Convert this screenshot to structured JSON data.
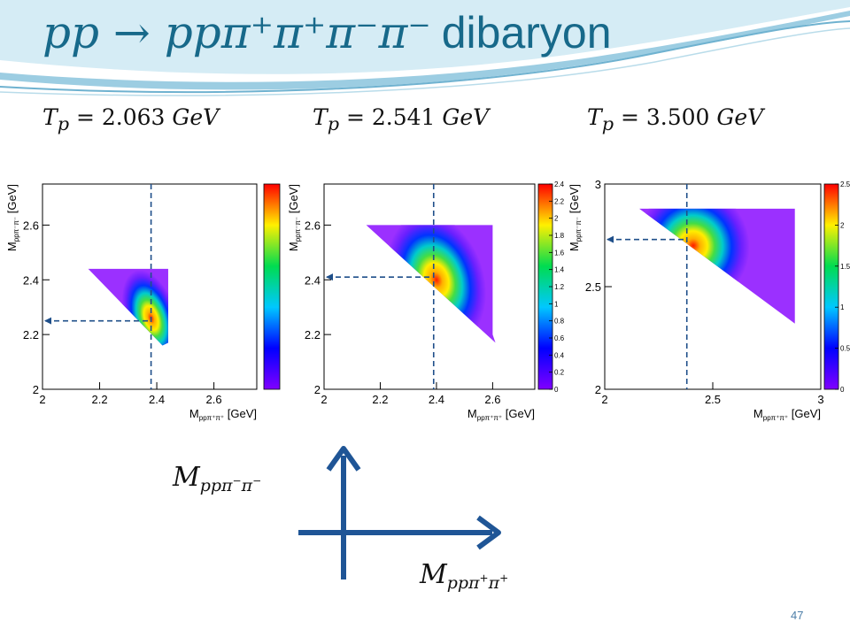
{
  "slide": {
    "title_math": "pp → ppπ⁺π⁺π⁻π⁻",
    "title_word": "dibaryon",
    "page_number": "47",
    "arrow_y_label": {
      "base": "M",
      "sub": "ppπ",
      "sup1": "−",
      "mid": "π",
      "sup2": "−"
    },
    "arrow_x_label": {
      "base": "M",
      "sub": "ppπ",
      "sup1": "+",
      "mid": "π",
      "sup2": "+"
    },
    "accent_color": "#17698a",
    "arrow_color": "#1f5596"
  },
  "panels": [
    {
      "energy_label": {
        "var": "T",
        "sub": "p",
        "eq": " = 2.063 ",
        "unit": "GeV"
      }
    },
    {
      "energy_label": {
        "var": "T",
        "sub": "p",
        "eq": " = 2.541 ",
        "unit": "GeV"
      }
    },
    {
      "energy_label": {
        "var": "T",
        "sub": "p",
        "eq": " = 3.500 ",
        "unit": "GeV"
      }
    }
  ],
  "chart_data": [
    {
      "type": "heatmap",
      "title": "",
      "xlabel": "M_{ppπ⁺π⁺} [GeV]",
      "ylabel": "M_{ppπ⁻π⁻} [GeV]",
      "xlim": [
        2.0,
        2.75
      ],
      "ylim": [
        2.0,
        2.75
      ],
      "xticks": [
        "2",
        "2.2",
        "2.4",
        "2.6"
      ],
      "yticks": [
        "2",
        "2.2",
        "2.4",
        "2.6"
      ],
      "region": [
        [
          2.16,
          2.44
        ],
        [
          2.44,
          2.44
        ],
        [
          2.44,
          2.17
        ],
        [
          2.42,
          2.16
        ]
      ],
      "peak": [
        2.38,
        2.26
      ],
      "spread": [
        0.035,
        0.07
      ],
      "dashed_marker": [
        2.38,
        2.25
      ],
      "colorbar": {
        "min": 0,
        "max": 1,
        "ticks": []
      },
      "grid": false
    },
    {
      "type": "heatmap",
      "title": "",
      "xlabel": "M_{ppπ⁺π⁺} [GeV]",
      "ylabel": "M_{ppπ⁻π⁻} [GeV]",
      "xlim": [
        2.0,
        2.75
      ],
      "ylim": [
        2.0,
        2.75
      ],
      "xticks": [
        "2",
        "2.2",
        "2.4",
        "2.6"
      ],
      "yticks": [
        "2",
        "2.2",
        "2.4",
        "2.6"
      ],
      "region": [
        [
          2.15,
          2.6
        ],
        [
          2.6,
          2.6
        ],
        [
          2.6,
          2.2
        ],
        [
          2.61,
          2.17
        ]
      ],
      "peak": [
        2.4,
        2.4
      ],
      "spread": [
        0.065,
        0.095
      ],
      "dashed_marker": [
        2.39,
        2.41
      ],
      "colorbar": {
        "min": 0,
        "max": 2.4,
        "ticks": [
          "0",
          "0.2",
          "0.4",
          "0.6",
          "0.8",
          "1",
          "1.2",
          "1.4",
          "1.6",
          "1.8",
          "2",
          "2.2",
          "2.4"
        ]
      },
      "grid": false
    },
    {
      "type": "heatmap",
      "title": "",
      "xlabel": "M_{ppπ⁺π⁺} [GeV]",
      "ylabel": "M_{ppπ⁻π⁻} [GeV]",
      "xlim": [
        2.0,
        3.0
      ],
      "ylim": [
        2.0,
        3.0
      ],
      "xticks": [
        "2",
        "2.5",
        "3"
      ],
      "yticks": [
        "2",
        "2.5",
        "3"
      ],
      "region": [
        [
          2.16,
          2.88
        ],
        [
          2.88,
          2.88
        ],
        [
          2.88,
          2.34
        ],
        [
          2.88,
          2.32
        ]
      ],
      "peak": [
        2.41,
        2.7
      ],
      "spread": [
        0.1,
        0.11
      ],
      "dashed_marker": [
        2.38,
        2.73
      ],
      "colorbar": {
        "min": 0,
        "max": 2.5,
        "ticks": [
          "0",
          "0.5",
          "1",
          "1.5",
          "2",
          "2.5"
        ]
      },
      "grid": false
    }
  ]
}
